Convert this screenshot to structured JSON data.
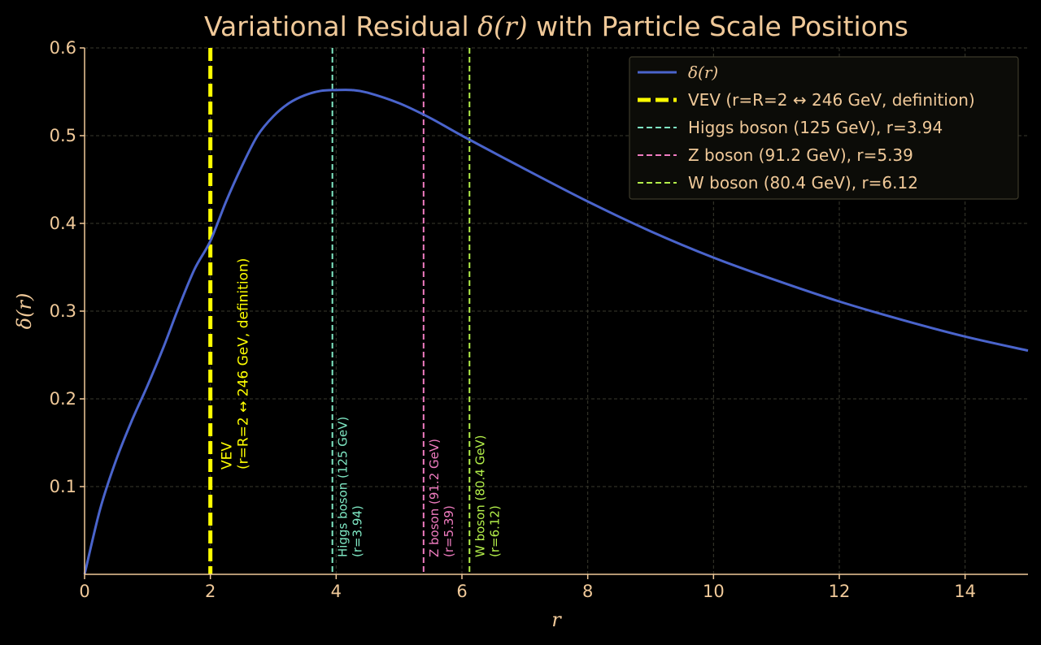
{
  "chart_data": {
    "type": "line",
    "title_main": "Variational Residual ",
    "title_delta": "δ(r)",
    "title_tail": " with Particle Scale Positions",
    "xlabel": "r",
    "ylabel": "δ(r)",
    "xlim": [
      0,
      15
    ],
    "ylim": [
      0,
      0.6
    ],
    "xticks": [
      0,
      2,
      4,
      6,
      8,
      10,
      12,
      14
    ],
    "yticks": [
      0.1,
      0.2,
      0.3,
      0.4,
      0.5,
      0.6
    ],
    "grid": true,
    "legend_position": "top-right",
    "colors": {
      "background": "#000000",
      "text": "#f0c999",
      "axis": "#f0c999",
      "grid": "#3a3a2e",
      "curve": "#4a64cc",
      "legend_bg": "#0c0c08",
      "legend_border": "#3d3a2a"
    },
    "series": [
      {
        "name": "δ(r)",
        "color": "#4a64cc",
        "x": [
          0,
          0.25,
          0.5,
          0.75,
          1.0,
          1.25,
          1.5,
          1.75,
          2.0,
          2.25,
          2.5,
          2.75,
          3.0,
          3.25,
          3.5,
          3.75,
          4.0,
          4.25,
          4.5,
          5.0,
          5.5,
          6.0,
          7.0,
          8.0,
          9.0,
          10.0,
          11.0,
          12.0,
          13.0,
          14.0,
          15.0
        ],
        "y": [
          0.0,
          0.075,
          0.13,
          0.175,
          0.215,
          0.258,
          0.305,
          0.348,
          0.38,
          0.425,
          0.465,
          0.5,
          0.522,
          0.537,
          0.546,
          0.551,
          0.552,
          0.552,
          0.549,
          0.537,
          0.52,
          0.5,
          0.462,
          0.425,
          0.391,
          0.361,
          0.335,
          0.311,
          0.29,
          0.271,
          0.255
        ]
      }
    ],
    "vlines": [
      {
        "x": 2.0,
        "color": "#ffff00",
        "style": "thick",
        "legend": "VEV (r=R=2 ↔ 246 GeV, definition)",
        "label_lines": [
          "VEV",
          "(r=R=2 ↔ 246 GeV, definition)"
        ]
      },
      {
        "x": 3.94,
        "color": "#7fe8c4",
        "style": "dashed",
        "legend": "Higgs boson (125 GeV), r=3.94",
        "label_lines": [
          "Higgs boson (125 GeV)",
          "(r=3.94)"
        ]
      },
      {
        "x": 5.39,
        "color": "#f07cc0",
        "style": "dashed",
        "legend": "Z boson (91.2 GeV), r=5.39",
        "label_lines": [
          "Z boson (91.2 GeV)",
          "(r=5.39)"
        ]
      },
      {
        "x": 6.12,
        "color": "#b4f04a",
        "style": "dashed",
        "legend": "W boson (80.4 GeV), r=6.12",
        "label_lines": [
          "W boson (80.4 GeV)",
          "(r=6.12)"
        ]
      }
    ]
  }
}
